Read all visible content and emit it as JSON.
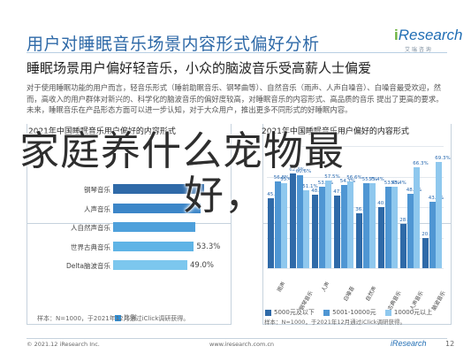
{
  "header": {
    "title": "用户对睡眠音乐场景内容形式偏好分析",
    "brand_i": "i",
    "brand_rest": "Research",
    "brand_sub": "艾 瑞 咨 询"
  },
  "subtitle": "睡眠场景用户偏好轻音乐，小众的脑波音乐受高薪人士偏爱",
  "description": "对于使用睡眠功能的用户而言，轻音乐形式（睡前助眠音乐、钢琴曲等）、自然音乐（雨声、人声白噪音）、白噪音最受欢迎，然而，高收入的用户群体对新兴的、科学化的脑波音乐的偏好度较高，对睡眠音乐的内容形式、高品质的音乐 提出了更高的要求。未来，睡眠音乐在产品形态方面可以进一步认知，对于大众用户，推出更多不同形式的好睡眠内容。",
  "overlay": {
    "line1": "家庭养什么宠物最",
    "line2": "好，"
  },
  "left_panel": {
    "title": "2021年中国睡眠音乐用户偏好的内容形式",
    "note": "样本：N=1000，于2021年12月通过iClick调研获得。",
    "legend": "比例"
  },
  "right_panel": {
    "title": "2021年中国睡眠音乐用户偏好的内容形式",
    "legend": [
      "5000元及以下",
      "5001-10000元",
      "10000元以上"
    ],
    "note": "样本：N=1000，于2021年12月通过iClick调研获得。"
  },
  "footer": {
    "left": "© 2021.12 iResearch Inc.",
    "mid": "www.iresearch.com.cn",
    "brand": "iResearch",
    "page": "12"
  },
  "chart_data": [
    {
      "type": "bar",
      "orientation": "horizontal",
      "title": "2021年中国睡眠音乐用户偏好的内容形式",
      "categories": [
        "钢琴音乐",
        "人声音乐",
        "人自然声音乐",
        "世界古典音乐",
        "Delta脑波音乐"
      ],
      "values": [
        60.3,
        58.0,
        54.1,
        53.3,
        49.0
      ],
      "value_labels": [
        "",
        "",
        "",
        "53.3%",
        "49.0%"
      ],
      "series": [
        {
          "name": "比例",
          "color": "#2f8fd6"
        }
      ],
      "colors": [
        "#2f6aa8",
        "#3c86c8",
        "#4ea0db",
        "#5fb4e6",
        "#7cc7ee"
      ]
    },
    {
      "type": "bar",
      "title": "2021年中国睡眠音乐用户偏好的内容形式",
      "categories": [
        "雨声",
        "钢琴音乐",
        "人声",
        "白噪音",
        "自然声",
        "古典音乐",
        "人声音乐",
        "脑波音乐"
      ],
      "series": [
        {
          "name": "5000元及以下",
          "color": "#2f6aa8",
          "values": [
            45.7,
            62.3,
            48.3,
            47.8,
            36.2,
            40.2,
            28.8,
            20.0
          ]
        },
        {
          "name": "5001-10000元",
          "color": "#4f96d3",
          "values": [
            56.8,
            60.6,
            53.1,
            54.7,
            55.7,
            53.4,
            48.6,
            43.5
          ]
        },
        {
          "name": "10000元以上",
          "color": "#8fc8ee",
          "values": [
            55.4,
            51.1,
            57.5,
            56.6,
            55.4,
            53.4,
            66.3,
            69.3
          ]
        }
      ],
      "ylim": [
        0,
        80
      ],
      "grid": true
    }
  ]
}
